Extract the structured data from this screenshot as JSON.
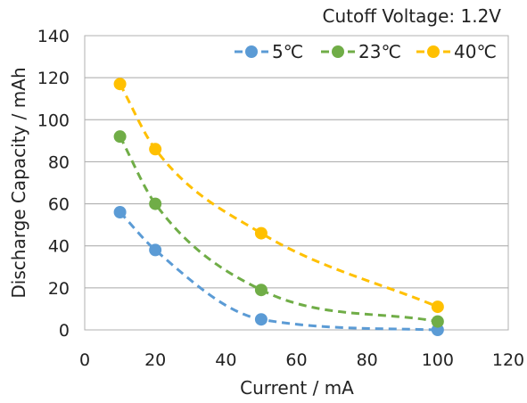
{
  "chart_data": {
    "type": "scatter",
    "title": "",
    "annotation": "Cutoff Voltage: 1.2V",
    "xlabel": "Current / mA",
    "ylabel": "Discharge Capacity / mAh",
    "xlim": [
      0,
      120
    ],
    "ylim": [
      0,
      140
    ],
    "xticks": [
      0,
      20,
      40,
      60,
      80,
      100,
      120
    ],
    "yticks": [
      0,
      20,
      40,
      60,
      80,
      100,
      120,
      140
    ],
    "grid": "horizontal",
    "legend_position": "top-right",
    "series": [
      {
        "name": "5℃",
        "color": "#5b9bd5",
        "points": [
          [
            10,
            56
          ],
          [
            20,
            38
          ],
          [
            50,
            5
          ],
          [
            100,
            0
          ]
        ]
      },
      {
        "name": "23℃",
        "color": "#70ad47",
        "points": [
          [
            10,
            92
          ],
          [
            20,
            60
          ],
          [
            50,
            19
          ],
          [
            100,
            4
          ]
        ]
      },
      {
        "name": "40℃",
        "color": "#ffc000",
        "points": [
          [
            10,
            117
          ],
          [
            20,
            86
          ],
          [
            50,
            46
          ],
          [
            100,
            11
          ]
        ]
      }
    ],
    "trend_style": "dashed smooth curve"
  }
}
